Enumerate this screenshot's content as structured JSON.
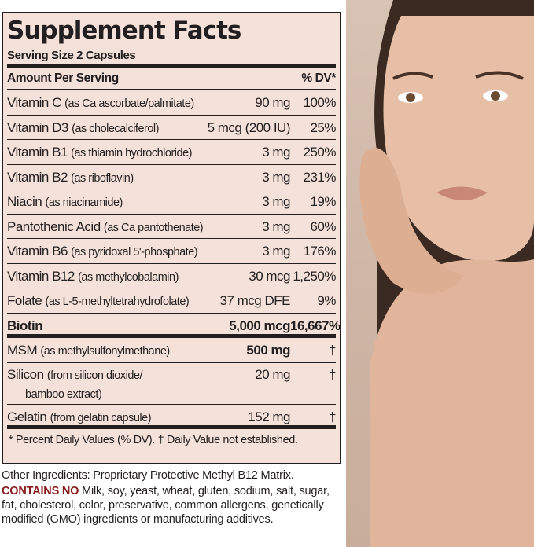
{
  "label": {
    "title": "Supplement Facts",
    "serving_size": "Serving Size 2 Capsules",
    "header_left": "Amount Per Serving",
    "header_right": "% DV*",
    "rows": [
      {
        "name": "Vitamin C",
        "source": "(as Ca ascorbate/palmitate)",
        "amount": "90 mg",
        "dv": "100%"
      },
      {
        "name": "Vitamin D3",
        "source": "(as cholecalciferol)",
        "amount": "5 mcg (200 IU)",
        "dv": "25%"
      },
      {
        "name": "Vitamin B1",
        "source": "(as thiamin hydrochloride)",
        "amount": "3 mg",
        "dv": "250%"
      },
      {
        "name": "Vitamin B2",
        "source": "(as riboflavin)",
        "amount": "3 mg",
        "dv": "231%"
      },
      {
        "name": "Niacin",
        "source": "(as niacinamide)",
        "amount": "3 mg",
        "dv": "19%"
      },
      {
        "name": "Pantothenic Acid",
        "source": "(as Ca pantothenate)",
        "amount": "3 mg",
        "dv": "60%"
      },
      {
        "name": "Vitamin B6",
        "source": "(as pyridoxal 5'-phosphate)",
        "amount": "3 mg",
        "dv": "176%"
      },
      {
        "name": "Vitamin B12",
        "source": "(as methylcobalamin)",
        "amount": "30 mcg",
        "dv": "1,250%"
      },
      {
        "name": "Folate",
        "source": "(as L-5-methyltetrahydrofolate)",
        "amount": "37 mcg DFE",
        "dv": "9%"
      },
      {
        "name": "Biotin",
        "source": "",
        "amount": "5,000 mcg",
        "dv": "16,667%"
      },
      {
        "name": "MSM",
        "source": "(as methylsulfonylmethane)",
        "amount": "500 mg",
        "dv": "†"
      },
      {
        "name": "Silicon",
        "source": "(from silicon dioxide/",
        "source2": "bamboo extract)",
        "amount": "20 mg",
        "dv": "†"
      },
      {
        "name": "Gelatin",
        "source": "(from gelatin capsule)",
        "amount": "152 mg",
        "dv": "†"
      }
    ],
    "footnote": "* Percent Daily Values (% DV).  † Daily Value not established."
  },
  "other_ingredients": "Other Ingredients: Proprietary Protective Methyl B12 Matrix.",
  "contains_no_label": "CONTAINS NO",
  "contains_no_text": " Milk, soy, yeast, wheat, gluten, sodium, salt, sugar, fat, cholesterol, color, preservative, common allergens, genetically modified (GMO) ingredients or manufacturing additives.",
  "colors": {
    "panel": "#f4e2da",
    "accent": "#8a1c1c"
  }
}
